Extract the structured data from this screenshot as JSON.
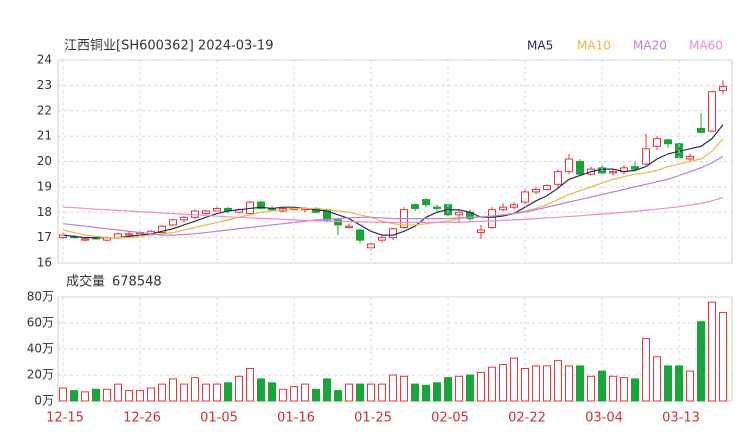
{
  "chart_data": [
    {
      "type": "candlestick",
      "title": "江西铜业[SH600362] 2024-03-19",
      "open": [
        17.0,
        17.05,
        16.9,
        17.0,
        16.9,
        17.0,
        17.1,
        17.15,
        17.15,
        17.2,
        17.5,
        17.7,
        17.8,
        17.95,
        18.05,
        18.15,
        18.0,
        17.95,
        18.4,
        18.15,
        18.05,
        18.1,
        18.1,
        18.15,
        18.1,
        17.7,
        17.4,
        17.3,
        16.6,
        16.9,
        17.0,
        17.4,
        18.3,
        18.5,
        18.2,
        18.3,
        17.9,
        18.0,
        17.2,
        17.4,
        18.1,
        18.2,
        18.4,
        18.8,
        18.9,
        19.1,
        19.6,
        20.0,
        19.5,
        19.75,
        19.55,
        19.6,
        19.8,
        19.9,
        20.6,
        20.85,
        20.7,
        20.1,
        21.3,
        21.2,
        22.8
      ],
      "high": [
        17.2,
        17.1,
        17.0,
        17.05,
        17.05,
        17.2,
        17.25,
        17.25,
        17.3,
        17.5,
        17.75,
        17.85,
        18.1,
        18.1,
        18.2,
        18.2,
        18.15,
        18.45,
        18.45,
        18.25,
        18.2,
        18.2,
        18.2,
        18.2,
        18.15,
        17.75,
        17.55,
        17.35,
        16.85,
        17.1,
        17.4,
        18.2,
        18.35,
        18.55,
        18.3,
        18.35,
        18.1,
        18.1,
        17.5,
        18.2,
        18.35,
        18.4,
        18.9,
        19.0,
        19.1,
        19.7,
        20.3,
        20.1,
        19.8,
        19.85,
        19.7,
        19.85,
        20.0,
        21.1,
        21.0,
        20.9,
        20.75,
        20.3,
        21.9,
        22.8,
        23.2
      ],
      "low": [
        16.95,
        16.95,
        16.85,
        16.9,
        16.85,
        16.95,
        17.05,
        17.1,
        17.1,
        17.15,
        17.45,
        17.6,
        17.75,
        17.9,
        18.0,
        17.95,
        17.95,
        17.9,
        18.1,
        18.05,
        18.0,
        18.05,
        18.0,
        17.95,
        17.6,
        17.1,
        17.35,
        16.8,
        16.5,
        16.8,
        16.9,
        17.35,
        18.05,
        18.2,
        18.05,
        17.85,
        17.6,
        17.6,
        16.95,
        17.35,
        18.05,
        18.1,
        18.3,
        18.7,
        18.85,
        19.0,
        19.5,
        19.45,
        19.45,
        19.5,
        19.45,
        19.5,
        19.6,
        19.85,
        20.45,
        20.55,
        20.1,
        20.0,
        21.1,
        21.15,
        22.65
      ],
      "close": [
        17.1,
        17.0,
        16.95,
        16.95,
        17.0,
        17.15,
        17.15,
        17.2,
        17.25,
        17.45,
        17.7,
        17.8,
        18.05,
        18.05,
        18.15,
        18.05,
        18.1,
        18.4,
        18.15,
        18.1,
        18.15,
        18.15,
        18.15,
        18.0,
        17.7,
        17.5,
        17.45,
        16.9,
        16.75,
        17.0,
        17.35,
        18.1,
        18.15,
        18.3,
        18.15,
        17.9,
        18.0,
        17.75,
        17.3,
        18.1,
        18.2,
        18.3,
        18.8,
        18.9,
        19.05,
        19.6,
        20.1,
        19.5,
        19.7,
        19.55,
        19.6,
        19.75,
        19.7,
        20.5,
        20.9,
        20.7,
        20.15,
        20.2,
        21.15,
        22.75,
        22.95
      ],
      "up_color": "#e8333a",
      "down_color": "#1aa53a",
      "series": [
        {
          "name": "MA5",
          "color": "#2b2b5e",
          "values": [
            17.1,
            17.05,
            17.0,
            17.0,
            17.0,
            17.0,
            17.05,
            17.1,
            17.15,
            17.25,
            17.35,
            17.5,
            17.65,
            17.8,
            17.95,
            18.05,
            18.1,
            18.15,
            18.2,
            18.15,
            18.2,
            18.2,
            18.15,
            18.1,
            18.05,
            17.9,
            17.75,
            17.5,
            17.25,
            17.1,
            17.1,
            17.25,
            17.45,
            17.8,
            18.0,
            18.1,
            18.1,
            18.0,
            17.8,
            17.8,
            17.85,
            17.95,
            18.2,
            18.45,
            18.65,
            18.95,
            19.3,
            19.45,
            19.6,
            19.7,
            19.7,
            19.6,
            19.65,
            19.8,
            20.1,
            20.3,
            20.4,
            20.5,
            20.6,
            20.9,
            21.45
          ]
        },
        {
          "name": "MA10",
          "color": "#f2b441",
          "values": [
            17.3,
            17.2,
            17.1,
            17.05,
            17.0,
            17.0,
            17.0,
            17.05,
            17.1,
            17.15,
            17.2,
            17.3,
            17.4,
            17.5,
            17.6,
            17.7,
            17.8,
            17.9,
            18.0,
            18.05,
            18.1,
            18.15,
            18.15,
            18.15,
            18.1,
            18.05,
            18.0,
            17.9,
            17.8,
            17.65,
            17.55,
            17.5,
            17.5,
            17.55,
            17.6,
            17.65,
            17.75,
            17.8,
            17.8,
            17.85,
            17.9,
            17.95,
            18.05,
            18.15,
            18.3,
            18.5,
            18.7,
            18.85,
            19.0,
            19.15,
            19.3,
            19.4,
            19.5,
            19.55,
            19.65,
            19.8,
            19.9,
            20.0,
            20.1,
            20.4,
            20.9
          ]
        },
        {
          "name": "MA20",
          "color": "#b681e0",
          "values": [
            17.55,
            17.5,
            17.45,
            17.4,
            17.35,
            17.3,
            17.25,
            17.2,
            17.15,
            17.1,
            17.1,
            17.12,
            17.15,
            17.2,
            17.25,
            17.3,
            17.35,
            17.4,
            17.45,
            17.5,
            17.55,
            17.6,
            17.65,
            17.7,
            17.72,
            17.75,
            17.78,
            17.8,
            17.8,
            17.78,
            17.75,
            17.75,
            17.75,
            17.75,
            17.75,
            17.75,
            17.78,
            17.8,
            17.82,
            17.85,
            17.9,
            17.95,
            18.0,
            18.1,
            18.2,
            18.3,
            18.4,
            18.5,
            18.6,
            18.7,
            18.8,
            18.9,
            19.0,
            19.1,
            19.2,
            19.3,
            19.45,
            19.6,
            19.75,
            19.95,
            20.2
          ]
        },
        {
          "name": "MA60",
          "color": "#f08cc8",
          "values": [
            18.2,
            18.18,
            18.15,
            18.12,
            18.1,
            18.07,
            18.05,
            18.02,
            18.0,
            17.97,
            17.95,
            17.92,
            17.9,
            17.87,
            17.85,
            17.82,
            17.8,
            17.78,
            17.76,
            17.74,
            17.72,
            17.7,
            17.68,
            17.66,
            17.65,
            17.64,
            17.63,
            17.62,
            17.61,
            17.6,
            17.6,
            17.6,
            17.6,
            17.6,
            17.6,
            17.6,
            17.6,
            17.62,
            17.64,
            17.66,
            17.68,
            17.7,
            17.72,
            17.75,
            17.78,
            17.8,
            17.83,
            17.86,
            17.9,
            17.93,
            17.96,
            18.0,
            18.04,
            18.08,
            18.12,
            18.17,
            18.22,
            18.28,
            18.35,
            18.45,
            18.58
          ]
        }
      ],
      "ylim": [
        16,
        24
      ],
      "yticks": [
        16,
        17,
        18,
        19,
        20,
        21,
        22,
        23,
        24
      ],
      "grid": true
    },
    {
      "type": "bar",
      "title": "成交量",
      "latest": 678548,
      "categories": [
        "12-15",
        null,
        null,
        null,
        null,
        null,
        null,
        "12-26",
        null,
        null,
        null,
        null,
        null,
        null,
        "01-05",
        null,
        null,
        null,
        null,
        null,
        null,
        "01-16",
        null,
        null,
        null,
        null,
        null,
        null,
        "01-25",
        null,
        null,
        null,
        null,
        null,
        null,
        "02-05",
        null,
        null,
        null,
        null,
        null,
        null,
        "02-22",
        null,
        null,
        null,
        null,
        null,
        null,
        "03-04",
        null,
        null,
        null,
        null,
        null,
        null,
        "03-13",
        null,
        null,
        null,
        null
      ],
      "values": [
        10,
        8,
        7,
        9,
        9,
        13,
        8,
        8,
        10,
        13,
        17,
        13,
        18,
        13,
        13,
        14,
        19,
        25,
        17,
        14,
        9,
        11,
        13,
        9,
        17,
        8,
        13,
        13,
        13,
        13,
        20,
        19,
        13,
        12,
        14,
        18,
        19,
        20,
        22,
        26,
        28,
        33,
        25,
        27,
        27,
        31,
        27,
        27,
        19,
        23,
        19,
        18,
        17,
        48,
        34,
        27,
        27,
        23,
        61,
        76,
        68
      ],
      "ylim": [
        0,
        80
      ],
      "yticks": [
        {
          "value": 0,
          "label": "0万"
        },
        {
          "value": 20,
          "label": "20万"
        },
        {
          "value": 40,
          "label": "40万"
        },
        {
          "value": 60,
          "label": "60万"
        },
        {
          "value": 80,
          "label": "80万"
        }
      ],
      "xtick_color": "#d0302f",
      "grid": true
    }
  ]
}
